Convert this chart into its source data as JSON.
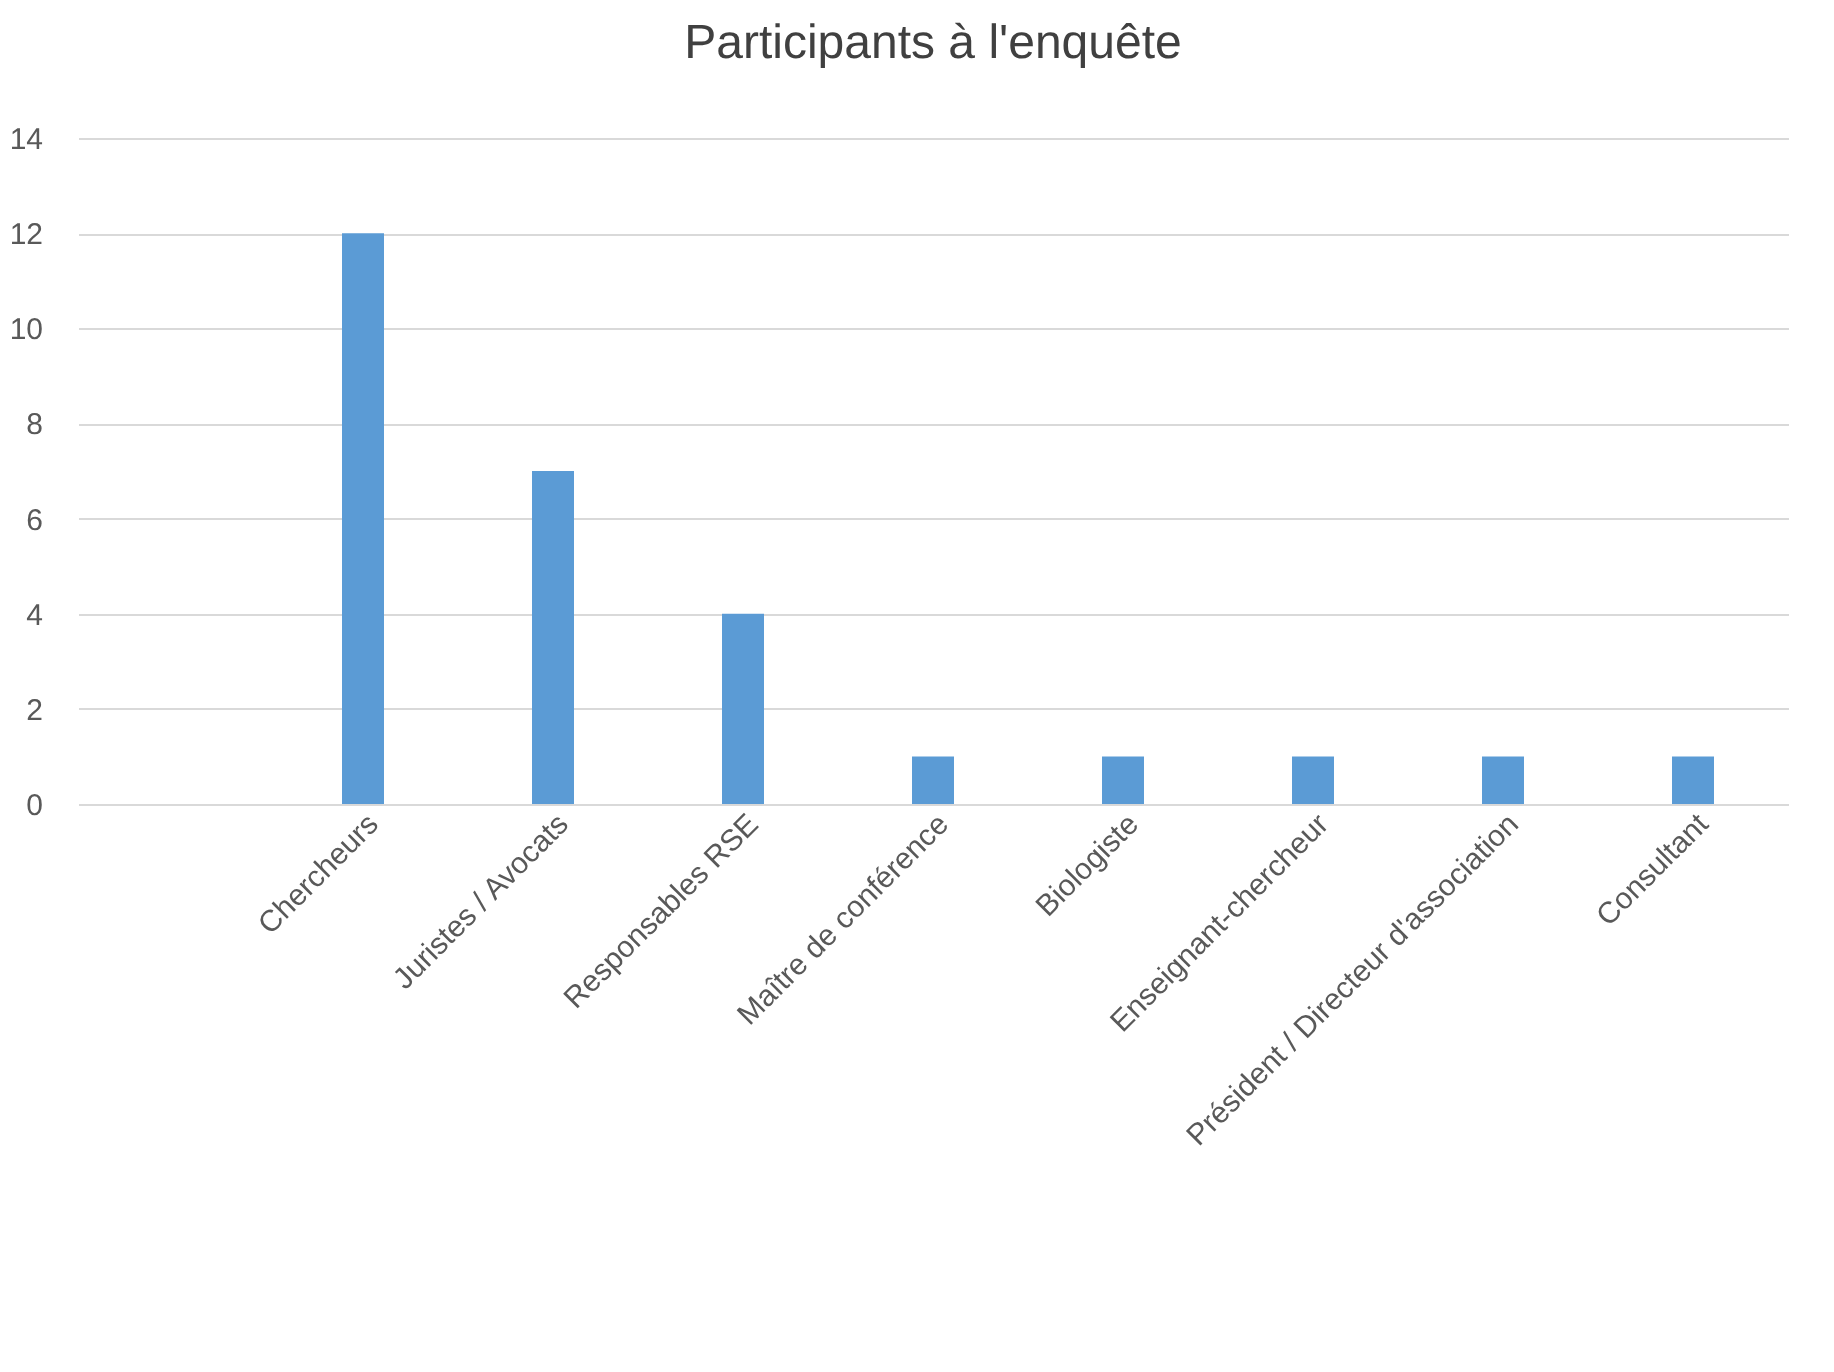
{
  "chart_data": {
    "type": "bar",
    "title": "Participants à l'enquête",
    "categories": [
      null,
      "Chercheurs",
      "Juristes / Avocats",
      "Responsables RSE",
      "Maître de conférence",
      "Biologiste",
      "Enseignant-chercheur",
      "Président / Directeur d'association",
      "Consultant"
    ],
    "values": [
      null,
      12,
      7,
      4,
      1,
      1,
      1,
      1,
      1
    ],
    "color": "#5b9bd5",
    "ylim": [
      0,
      14
    ],
    "yticks": [
      0,
      2,
      4,
      6,
      8,
      10,
      12,
      14
    ],
    "grid": "y"
  }
}
